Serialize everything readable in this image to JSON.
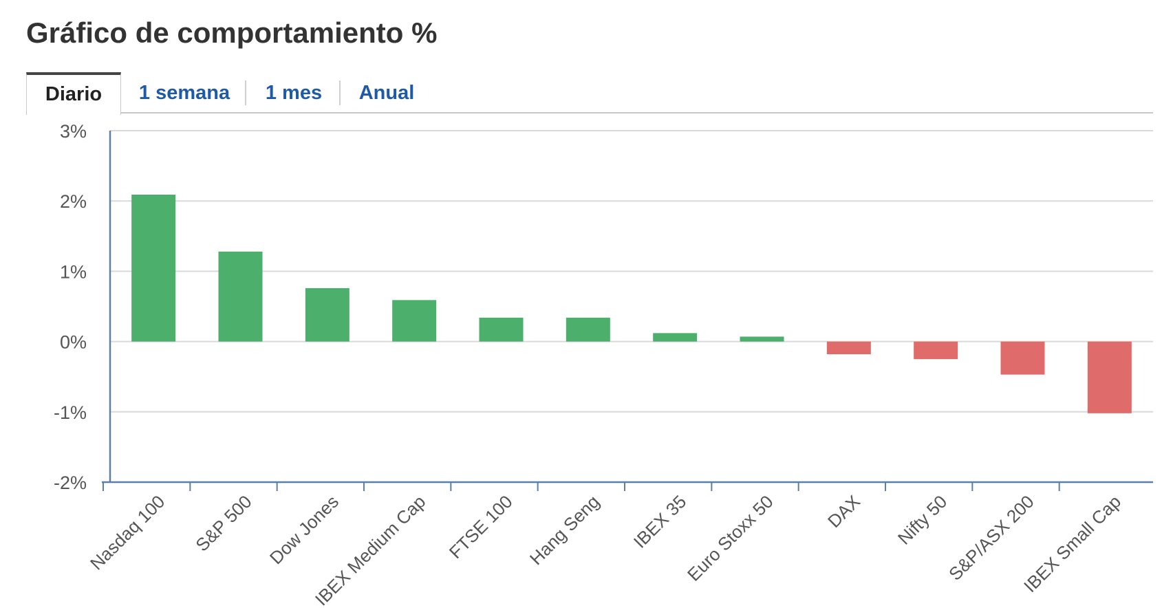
{
  "header": {
    "title": "Gráfico de comportamiento %"
  },
  "tabs": [
    {
      "label": "Diario",
      "active": true
    },
    {
      "label": "1 semana",
      "active": false
    },
    {
      "label": "1 mes",
      "active": false
    },
    {
      "label": "Anual",
      "active": false
    }
  ],
  "colors": {
    "positive": "#4caf6c",
    "negative": "#e06b6b",
    "axis": "#5a7fa8",
    "grid": "#d9d9d9",
    "tick_text": "#555555",
    "tab_link": "#1f5aa6"
  },
  "chart_data": {
    "type": "bar",
    "title": "",
    "xlabel": "",
    "ylabel": "",
    "ylim": [
      -2,
      3
    ],
    "y_ticks": [
      3,
      2,
      1,
      0,
      -1,
      -2
    ],
    "y_tick_labels": [
      "3%",
      "2%",
      "1%",
      "0%",
      "-1%",
      "-2%"
    ],
    "grid": true,
    "categories": [
      "Nasdaq 100",
      "S&P 500",
      "Dow Jones",
      "IBEX Medium Cap",
      "FTSE 100",
      "Hang Seng",
      "IBEX 35",
      "Euro Stoxx 50",
      "DAX",
      "Nifty 50",
      "S&P/ASX 200",
      "IBEX Small Cap"
    ],
    "values": [
      2.09,
      1.28,
      0.76,
      0.59,
      0.34,
      0.34,
      0.12,
      0.07,
      -0.18,
      -0.25,
      -0.47,
      -1.02
    ]
  }
}
